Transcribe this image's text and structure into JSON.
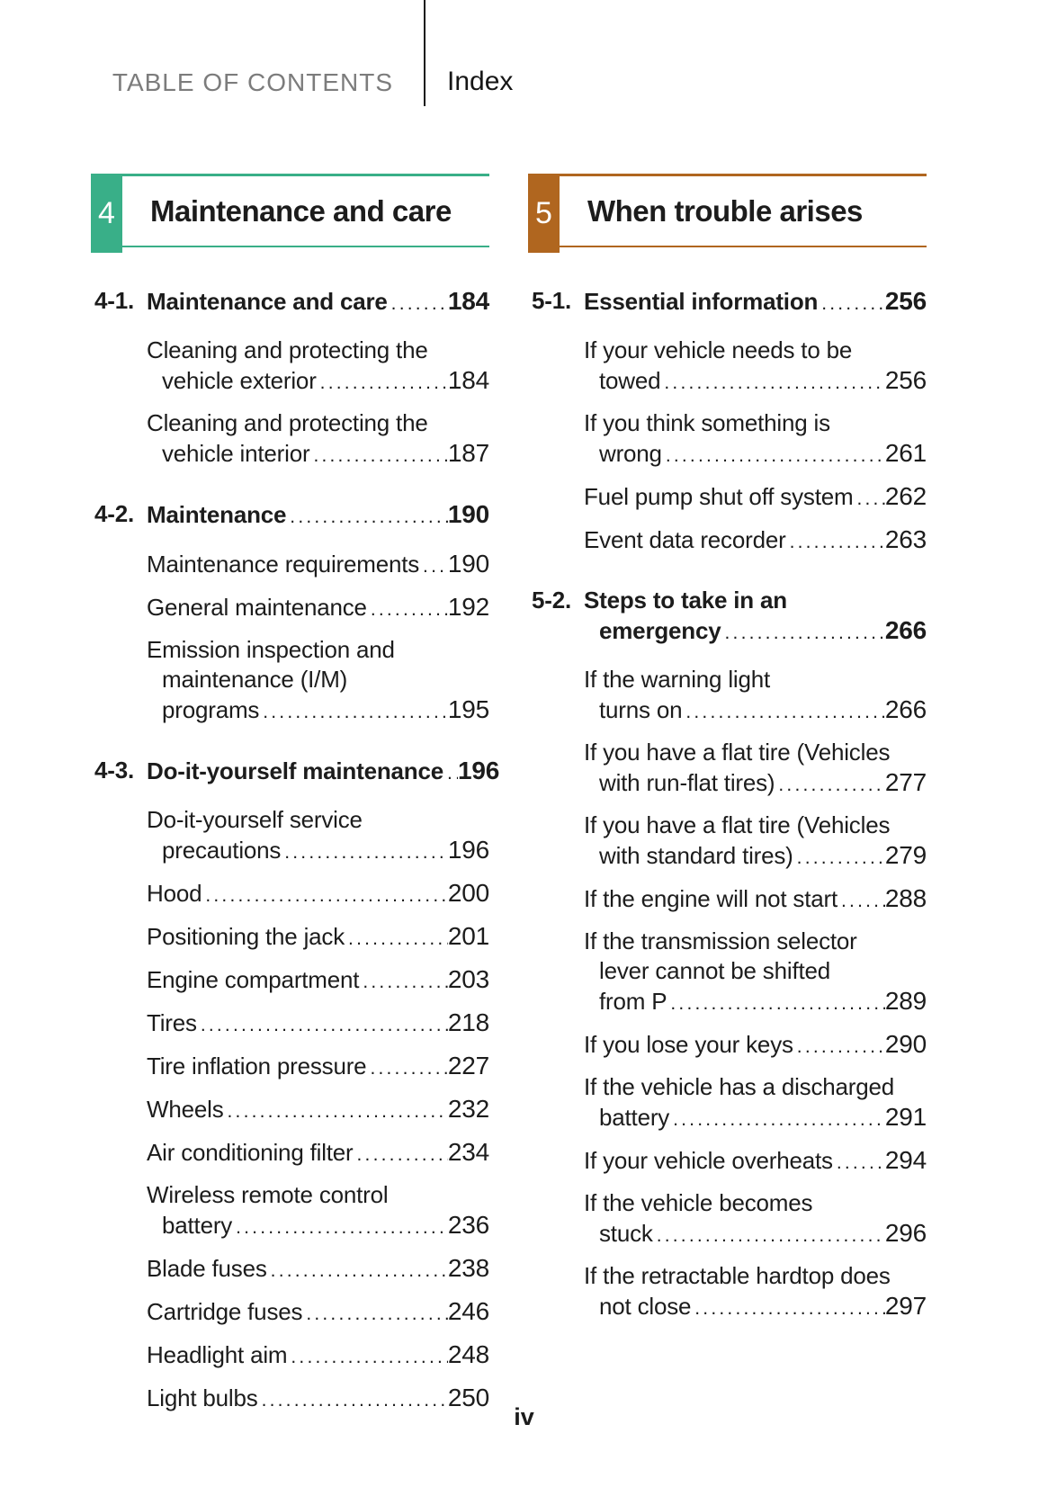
{
  "header": {
    "title": "TABLE OF CONTENTS",
    "index_label": "Index"
  },
  "footer": {
    "page_number": "iv"
  },
  "columns": [
    {
      "chapter": {
        "number": "4",
        "title": "Maintenance and care",
        "color": "#39af88"
      },
      "groups": [
        {
          "label": "4-1.",
          "heading": {
            "pre": [],
            "tail": "Maintenance and care",
            "page": "184"
          },
          "entries": [
            {
              "pre": [
                "Cleaning and protecting the"
              ],
              "tail": "vehicle exterior",
              "page": "184"
            },
            {
              "pre": [
                "Cleaning and protecting the"
              ],
              "tail": "vehicle interior",
              "page": "187"
            }
          ]
        },
        {
          "label": "4-2.",
          "heading": {
            "pre": [],
            "tail": "Maintenance",
            "page": "190"
          },
          "entries": [
            {
              "pre": [],
              "tail": "Maintenance requirements",
              "page": "190"
            },
            {
              "pre": [],
              "tail": "General maintenance",
              "page": "192"
            },
            {
              "pre": [
                "Emission inspection and",
                "maintenance (I/M)"
              ],
              "tail": "programs",
              "page": "195"
            }
          ]
        },
        {
          "label": "4-3.",
          "heading": {
            "pre": [],
            "tail": "Do-it-yourself maintenance",
            "page": "196"
          },
          "entries": [
            {
              "pre": [
                "Do-it-yourself service"
              ],
              "tail": "precautions",
              "page": "196"
            },
            {
              "pre": [],
              "tail": "Hood",
              "page": "200"
            },
            {
              "pre": [],
              "tail": "Positioning the jack",
              "page": "201"
            },
            {
              "pre": [],
              "tail": "Engine compartment",
              "page": "203"
            },
            {
              "pre": [],
              "tail": "Tires",
              "page": "218"
            },
            {
              "pre": [],
              "tail": "Tire inflation pressure",
              "page": "227"
            },
            {
              "pre": [],
              "tail": "Wheels",
              "page": "232"
            },
            {
              "pre": [],
              "tail": "Air conditioning filter",
              "page": "234"
            },
            {
              "pre": [
                "Wireless remote control"
              ],
              "tail": "battery",
              "page": "236"
            },
            {
              "pre": [],
              "tail": "Blade fuses",
              "page": "238"
            },
            {
              "pre": [],
              "tail": "Cartridge fuses",
              "page": "246"
            },
            {
              "pre": [],
              "tail": "Headlight aim",
              "page": "248"
            },
            {
              "pre": [],
              "tail": "Light bulbs",
              "page": "250"
            }
          ]
        }
      ]
    },
    {
      "chapter": {
        "number": "5",
        "title": "When trouble arises",
        "color": "#b0661f"
      },
      "groups": [
        {
          "label": "5-1.",
          "heading": {
            "pre": [],
            "tail": "Essential information",
            "page": "256"
          },
          "entries": [
            {
              "pre": [
                "If your vehicle needs to be"
              ],
              "tail": "towed",
              "page": "256"
            },
            {
              "pre": [
                "If you think something is"
              ],
              "tail": "wrong",
              "page": "261"
            },
            {
              "pre": [],
              "tail": "Fuel pump shut off system",
              "page": "262"
            },
            {
              "pre": [],
              "tail": "Event data recorder",
              "page": "263"
            }
          ]
        },
        {
          "label": "5-2.",
          "heading": {
            "pre": [
              "Steps to take in an"
            ],
            "tail": "emergency",
            "page": "266"
          },
          "entries": [
            {
              "pre": [
                "If the warning light"
              ],
              "tail": "turns on",
              "page": "266"
            },
            {
              "pre": [
                "If you have a flat tire (Vehicles"
              ],
              "tail": "with run-flat tires)",
              "page": "277"
            },
            {
              "pre": [
                "If you have a flat tire (Vehicles"
              ],
              "tail": "with standard tires)",
              "page": "279"
            },
            {
              "pre": [],
              "tail": "If the engine will not start",
              "page": "288"
            },
            {
              "pre": [
                "If the transmission selector",
                "lever cannot be shifted"
              ],
              "tail": "from P",
              "page": "289"
            },
            {
              "pre": [],
              "tail": "If you lose your keys",
              "page": "290"
            },
            {
              "pre": [
                "If the vehicle has a discharged"
              ],
              "tail": "battery",
              "page": "291"
            },
            {
              "pre": [],
              "tail": "If your vehicle overheats",
              "page": "294"
            },
            {
              "pre": [
                "If the vehicle becomes"
              ],
              "tail": "stuck",
              "page": "296"
            },
            {
              "pre": [
                "If the retractable hardtop does"
              ],
              "tail": "not close",
              "page": "297"
            }
          ]
        }
      ]
    }
  ]
}
